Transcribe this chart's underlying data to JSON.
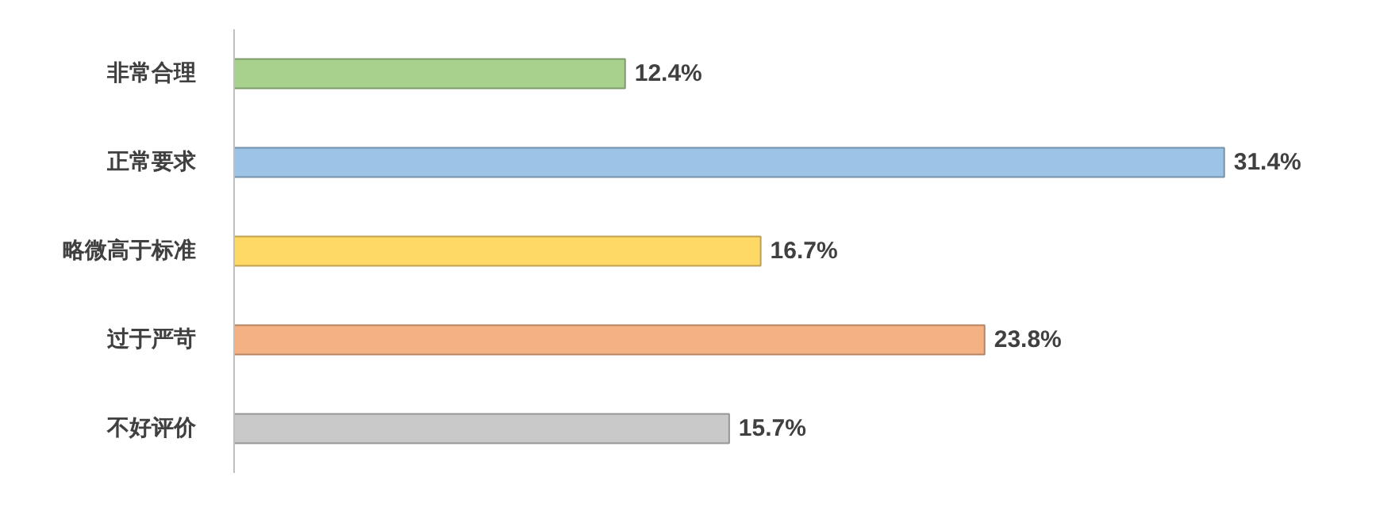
{
  "chart_data": {
    "type": "bar",
    "orientation": "horizontal",
    "tick_labels": "y",
    "categories": [
      "非常合理",
      "正常要求",
      "略微高于标准",
      "过于严苛",
      "不好评价"
    ],
    "values": [
      12.4,
      31.4,
      16.7,
      23.8,
      15.7
    ],
    "value_labels": [
      "12.4%",
      "31.4%",
      "16.7%",
      "23.8%",
      "15.7%"
    ],
    "colors": [
      "#a9d18e",
      "#9dc3e6",
      "#ffd966",
      "#f4b183",
      "#c9c9c9"
    ],
    "grid": false
  }
}
